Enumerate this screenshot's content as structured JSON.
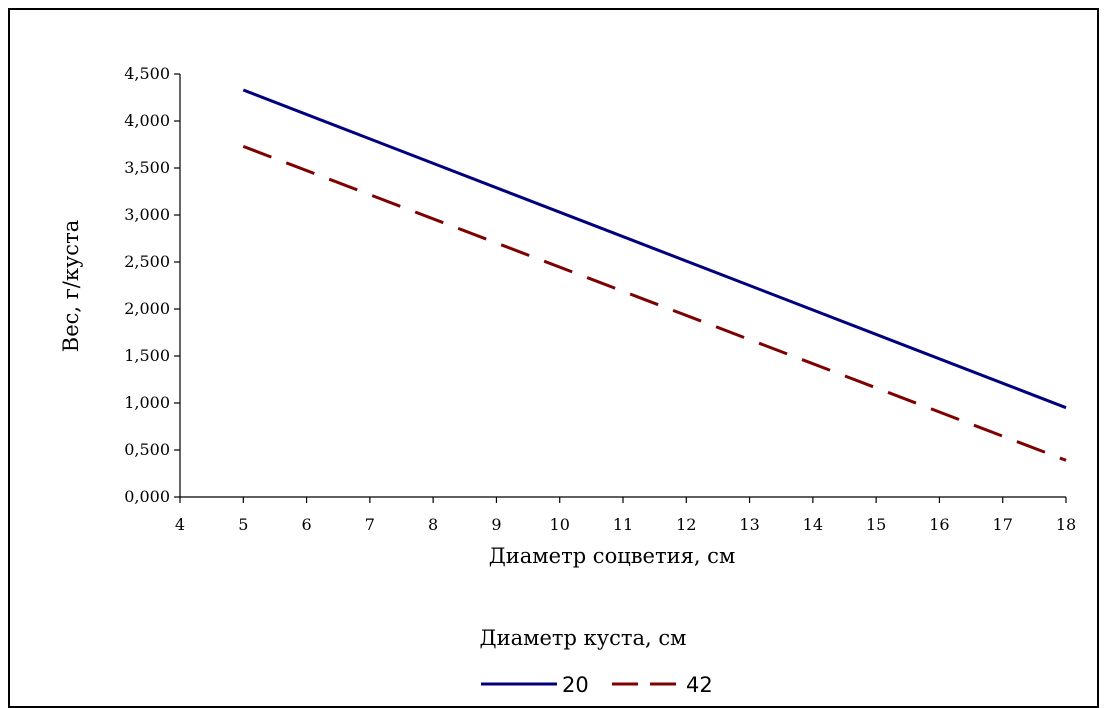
{
  "chart_data": {
    "type": "line",
    "xlabel": "Диаметр соцветия, см",
    "ylabel": "Вес, г/куста",
    "x_ticks": [
      "4",
      "5",
      "6",
      "7",
      "8",
      "9",
      "10",
      "11",
      "12",
      "13",
      "14",
      "15",
      "16",
      "17",
      "18"
    ],
    "y_ticks": [
      "0,000",
      "0,500",
      "1,000",
      "1,500",
      "2,000",
      "2,500",
      "3,000",
      "3,500",
      "4,000",
      "4,500"
    ],
    "xlim": [
      4,
      18
    ],
    "ylim": [
      0,
      4.5
    ],
    "grid": false,
    "legend": {
      "title": "Диаметр куста, см",
      "placement": "bottom"
    },
    "series": [
      {
        "name": "20",
        "color": "#00007f",
        "style": "solid",
        "x": [
          5,
          18
        ],
        "y": [
          4.33,
          0.95
        ]
      },
      {
        "name": "42",
        "color": "#7f0000",
        "style": "dashed",
        "x": [
          5,
          18
        ],
        "y": [
          3.73,
          0.39
        ]
      }
    ]
  }
}
